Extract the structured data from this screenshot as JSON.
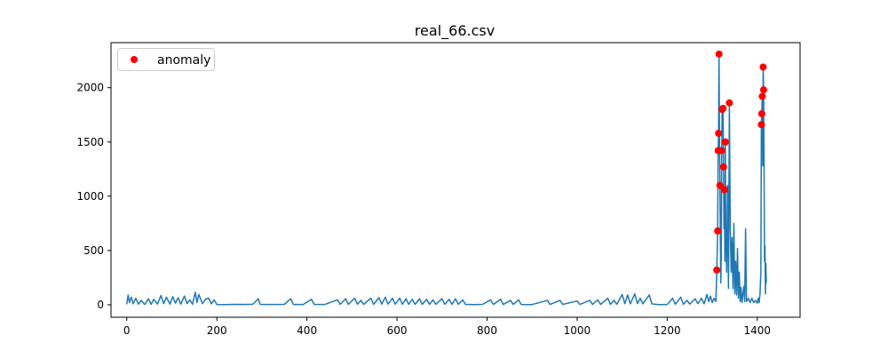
{
  "chart_data": {
    "type": "line",
    "title": "real_66.csv",
    "xlim": [
      -35,
      1495
    ],
    "ylim": [
      -115,
      2415
    ],
    "x_ticks": [
      0,
      200,
      400,
      600,
      800,
      1000,
      1200,
      1400
    ],
    "y_ticks": [
      0,
      500,
      1000,
      1500,
      2000
    ],
    "legend": {
      "entries": [
        "anomaly"
      ],
      "placement": "top-left"
    },
    "series": [
      {
        "type": "line",
        "color": "#1f77b4",
        "points": [
          [
            0,
            5
          ],
          [
            3,
            90
          ],
          [
            6,
            20
          ],
          [
            10,
            70
          ],
          [
            14,
            8
          ],
          [
            20,
            60
          ],
          [
            26,
            5
          ],
          [
            32,
            40
          ],
          [
            40,
            3
          ],
          [
            48,
            55
          ],
          [
            54,
            4
          ],
          [
            60,
            50
          ],
          [
            68,
            6
          ],
          [
            76,
            85
          ],
          [
            82,
            10
          ],
          [
            88,
            70
          ],
          [
            96,
            5
          ],
          [
            102,
            75
          ],
          [
            108,
            15
          ],
          [
            114,
            65
          ],
          [
            120,
            6
          ],
          [
            128,
            80
          ],
          [
            134,
            10
          ],
          [
            140,
            45
          ],
          [
            146,
            5
          ],
          [
            152,
            115
          ],
          [
            156,
            20
          ],
          [
            160,
            95
          ],
          [
            168,
            10
          ],
          [
            176,
            55
          ],
          [
            182,
            60
          ],
          [
            188,
            8
          ],
          [
            194,
            45
          ],
          [
            200,
            3
          ],
          [
            220,
            2
          ],
          [
            240,
            4
          ],
          [
            260,
            3
          ],
          [
            280,
            5
          ],
          [
            292,
            55
          ],
          [
            296,
            4
          ],
          [
            320,
            3
          ],
          [
            350,
            4
          ],
          [
            364,
            55
          ],
          [
            370,
            3
          ],
          [
            392,
            3
          ],
          [
            410,
            50
          ],
          [
            416,
            4
          ],
          [
            440,
            3
          ],
          [
            468,
            45
          ],
          [
            474,
            4
          ],
          [
            486,
            55
          ],
          [
            492,
            4
          ],
          [
            506,
            60
          ],
          [
            512,
            5
          ],
          [
            520,
            40
          ],
          [
            526,
            3
          ],
          [
            542,
            60
          ],
          [
            548,
            4
          ],
          [
            560,
            65
          ],
          [
            566,
            5
          ],
          [
            574,
            70
          ],
          [
            580,
            6
          ],
          [
            590,
            60
          ],
          [
            596,
            5
          ],
          [
            606,
            60
          ],
          [
            612,
            4
          ],
          [
            620,
            55
          ],
          [
            626,
            4
          ],
          [
            634,
            50
          ],
          [
            640,
            4
          ],
          [
            650,
            55
          ],
          [
            656,
            4
          ],
          [
            666,
            50
          ],
          [
            672,
            4
          ],
          [
            680,
            45
          ],
          [
            686,
            4
          ],
          [
            700,
            55
          ],
          [
            706,
            4
          ],
          [
            716,
            50
          ],
          [
            722,
            4
          ],
          [
            730,
            55
          ],
          [
            736,
            4
          ],
          [
            746,
            45
          ],
          [
            752,
            4
          ],
          [
            770,
            2
          ],
          [
            790,
            4
          ],
          [
            808,
            45
          ],
          [
            814,
            3
          ],
          [
            830,
            50
          ],
          [
            836,
            3
          ],
          [
            852,
            40
          ],
          [
            858,
            3
          ],
          [
            870,
            45
          ],
          [
            876,
            3
          ],
          [
            900,
            2
          ],
          [
            934,
            40
          ],
          [
            940,
            3
          ],
          [
            962,
            40
          ],
          [
            968,
            3
          ],
          [
            1000,
            35
          ],
          [
            1006,
            3
          ],
          [
            1028,
            40
          ],
          [
            1034,
            3
          ],
          [
            1046,
            45
          ],
          [
            1052,
            3
          ],
          [
            1068,
            60
          ],
          [
            1074,
            4
          ],
          [
            1082,
            40
          ],
          [
            1088,
            4
          ],
          [
            1100,
            95
          ],
          [
            1106,
            10
          ],
          [
            1112,
            90
          ],
          [
            1118,
            8
          ],
          [
            1128,
            100
          ],
          [
            1134,
            10
          ],
          [
            1140,
            60
          ],
          [
            1146,
            8
          ],
          [
            1160,
            90
          ],
          [
            1166,
            8
          ],
          [
            1180,
            2
          ],
          [
            1200,
            3
          ],
          [
            1212,
            60
          ],
          [
            1218,
            4
          ],
          [
            1230,
            70
          ],
          [
            1236,
            5
          ],
          [
            1244,
            40
          ],
          [
            1250,
            6
          ],
          [
            1262,
            55
          ],
          [
            1268,
            10
          ],
          [
            1276,
            60
          ],
          [
            1282,
            8
          ],
          [
            1288,
            95
          ],
          [
            1292,
            30
          ],
          [
            1296,
            80
          ],
          [
            1300,
            20
          ],
          [
            1304,
            60
          ],
          [
            1308,
            30
          ],
          [
            1310,
            320
          ],
          [
            1312,
            680
          ],
          [
            1313,
            1420
          ],
          [
            1314,
            1580
          ],
          [
            1315,
            2310
          ],
          [
            1316,
            1600
          ],
          [
            1317,
            1100
          ],
          [
            1318,
            600
          ],
          [
            1319,
            200
          ],
          [
            1320,
            450
          ],
          [
            1321,
            1420
          ],
          [
            1322,
            1800
          ],
          [
            1324,
            1810
          ],
          [
            1325,
            1270
          ],
          [
            1326,
            700
          ],
          [
            1327,
            1060
          ],
          [
            1328,
            400
          ],
          [
            1329,
            1500
          ],
          [
            1330,
            700
          ],
          [
            1332,
            300
          ],
          [
            1334,
            1100
          ],
          [
            1336,
            150
          ],
          [
            1338,
            1860
          ],
          [
            1340,
            700
          ],
          [
            1342,
            300
          ],
          [
            1344,
            620
          ],
          [
            1346,
            150
          ],
          [
            1348,
            750
          ],
          [
            1350,
            100
          ],
          [
            1352,
            400
          ],
          [
            1354,
            90
          ],
          [
            1356,
            520
          ],
          [
            1358,
            60
          ],
          [
            1360,
            300
          ],
          [
            1362,
            30
          ],
          [
            1364,
            160
          ],
          [
            1366,
            20
          ],
          [
            1370,
            170
          ],
          [
            1372,
            30
          ],
          [
            1374,
            700
          ],
          [
            1376,
            30
          ],
          [
            1380,
            60
          ],
          [
            1384,
            20
          ],
          [
            1388,
            60
          ],
          [
            1392,
            20
          ],
          [
            1396,
            40
          ],
          [
            1400,
            15
          ],
          [
            1402,
            60
          ],
          [
            1404,
            20
          ],
          [
            1406,
            100
          ],
          [
            1408,
            300
          ],
          [
            1409,
            1660
          ],
          [
            1410,
            1760
          ],
          [
            1411,
            1920
          ],
          [
            1412,
            1280
          ],
          [
            1413,
            2190
          ],
          [
            1414,
            1980
          ],
          [
            1415,
            1300
          ],
          [
            1416,
            400
          ],
          [
            1417,
            540
          ],
          [
            1418,
            100
          ],
          [
            1419,
            380
          ],
          [
            1420,
            200
          ]
        ]
      }
    ],
    "anomalies": {
      "name": "anomaly",
      "color": "#ff0000",
      "points": [
        [
          1310,
          320
        ],
        [
          1312,
          680
        ],
        [
          1313,
          1420
        ],
        [
          1314,
          1580
        ],
        [
          1315,
          2310
        ],
        [
          1317,
          1100
        ],
        [
          1321,
          1420
        ],
        [
          1322,
          1800
        ],
        [
          1324,
          1810
        ],
        [
          1325,
          1270
        ],
        [
          1327,
          1060
        ],
        [
          1329,
          1500
        ],
        [
          1338,
          1860
        ],
        [
          1409,
          1660
        ],
        [
          1410,
          1760
        ],
        [
          1411,
          1920
        ],
        [
          1413,
          2190
        ],
        [
          1414,
          1980
        ]
      ]
    }
  }
}
